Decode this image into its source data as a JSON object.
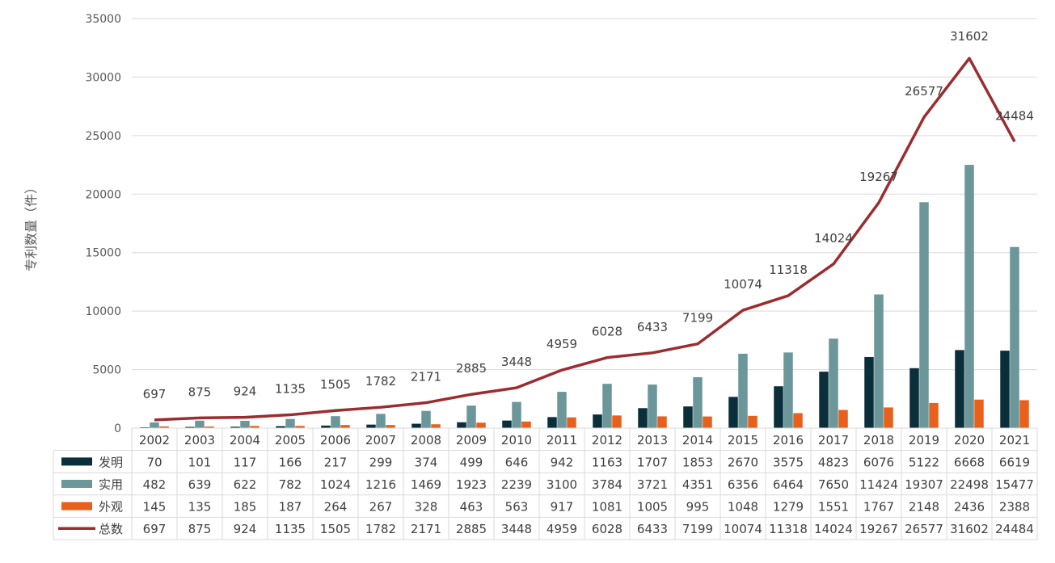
{
  "chart_data": {
    "type": "bar",
    "ylabel": "专利数量（件）",
    "ylim": [
      0,
      35000
    ],
    "yticks": [
      0,
      5000,
      10000,
      15000,
      20000,
      25000,
      30000,
      35000
    ],
    "grid": true,
    "legend": "data-table-left",
    "categories": [
      "2002",
      "2003",
      "2004",
      "2005",
      "2006",
      "2007",
      "2008",
      "2009",
      "2010",
      "2011",
      "2012",
      "2013",
      "2014",
      "2015",
      "2016",
      "2017",
      "2018",
      "2019",
      "2020",
      "2021"
    ],
    "series": [
      {
        "name": "发明",
        "kind": "bar",
        "color": "#0b2f3a",
        "values": [
          70,
          101,
          117,
          166,
          217,
          299,
          374,
          499,
          646,
          942,
          1163,
          1707,
          1853,
          2670,
          3575,
          4823,
          6076,
          5122,
          6668,
          6619
        ]
      },
      {
        "name": "实用",
        "kind": "bar",
        "color": "#6b979b",
        "values": [
          482,
          639,
          622,
          782,
          1024,
          1216,
          1469,
          1923,
          2239,
          3100,
          3784,
          3721,
          4351,
          6356,
          6464,
          7650,
          11424,
          19307,
          22498,
          15477
        ]
      },
      {
        "name": "外观",
        "kind": "bar",
        "color": "#e8601c",
        "values": [
          145,
          135,
          185,
          187,
          264,
          267,
          328,
          463,
          563,
          917,
          1081,
          1005,
          995,
          1048,
          1279,
          1551,
          1767,
          2148,
          2436,
          2388
        ]
      },
      {
        "name": "总数",
        "kind": "line",
        "color": "#9b2c2f",
        "values": [
          697,
          875,
          924,
          1135,
          1505,
          1782,
          2171,
          2885,
          3448,
          4959,
          6028,
          6433,
          7199,
          10074,
          11318,
          14024,
          19267,
          26577,
          31602,
          24484
        ]
      }
    ]
  }
}
